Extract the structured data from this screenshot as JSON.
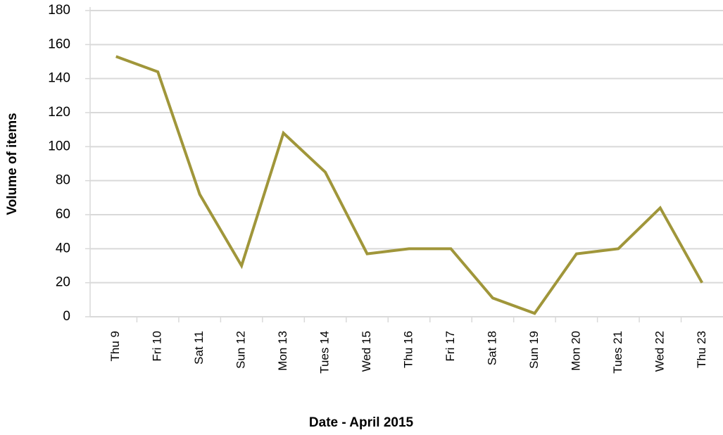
{
  "chart_data": {
    "type": "line",
    "x_label": "Date - April 2015",
    "y_label": "Volume of items",
    "categories": [
      "Thu 9",
      "Fri 10",
      "Sat 11",
      "Sun 12",
      "Mon 13",
      "Tues 14",
      "Wed 15",
      "Thu 16",
      "Fri 17",
      "Sat 18",
      "Sun 19",
      "Mon 20",
      "Tues 21",
      "Wed 22",
      "Thu 23"
    ],
    "series": [
      {
        "name": "Volume of items",
        "color": "#a0963a",
        "values": [
          153,
          144,
          72,
          30,
          108,
          85,
          37,
          40,
          40,
          11,
          2,
          37,
          40,
          64,
          20
        ]
      }
    ],
    "ylim": [
      0,
      180
    ],
    "yticks": [
      0,
      20,
      40,
      60,
      80,
      100,
      120,
      140,
      160,
      180
    ],
    "grid": true
  }
}
